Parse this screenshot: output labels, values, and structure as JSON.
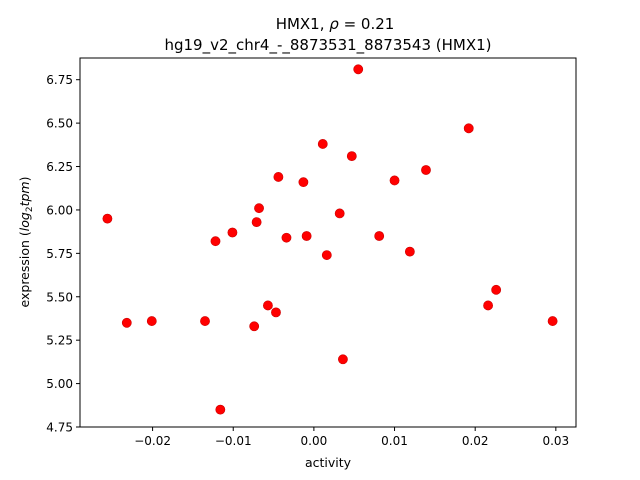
{
  "chart_data": {
    "type": "scatter",
    "title_prefix": "HMX1, ",
    "title_rho_symbol": "ρ",
    "title_rho_value": " = 0.21",
    "subtitle": "hg19_v2_chr4_-_8873531_8873543 (HMX1)",
    "xlabel": "activity",
    "ylabel_prefix": "expression (",
    "ylabel_log": "log",
    "ylabel_sub": "2",
    "ylabel_tpm": "tpm",
    "ylabel_suffix": ")",
    "xlim": [
      -0.029,
      0.0325
    ],
    "ylim": [
      4.75,
      6.875
    ],
    "xticks": [
      -0.02,
      -0.01,
      0.0,
      0.01,
      0.02,
      0.03
    ],
    "xtick_labels": [
      "−0.02",
      "−0.01",
      "0.00",
      "0.01",
      "0.02",
      "0.03"
    ],
    "yticks": [
      4.75,
      5.0,
      5.25,
      5.5,
      5.75,
      6.0,
      6.25,
      6.5,
      6.75
    ],
    "ytick_labels": [
      "4.75",
      "5.00",
      "5.25",
      "5.50",
      "5.75",
      "6.00",
      "6.25",
      "6.50",
      "6.75"
    ],
    "grid": false,
    "marker_color": "#ff0000",
    "marker_edge_color": "#cc0000",
    "points": [
      {
        "x": -0.0256,
        "y": 5.95
      },
      {
        "x": -0.0232,
        "y": 5.35
      },
      {
        "x": -0.0201,
        "y": 5.36
      },
      {
        "x": -0.0135,
        "y": 5.36
      },
      {
        "x": -0.0122,
        "y": 5.82
      },
      {
        "x": -0.0116,
        "y": 4.85
      },
      {
        "x": -0.0101,
        "y": 5.87
      },
      {
        "x": -0.0074,
        "y": 5.33
      },
      {
        "x": -0.0071,
        "y": 5.93
      },
      {
        "x": -0.0068,
        "y": 6.01
      },
      {
        "x": -0.0057,
        "y": 5.45
      },
      {
        "x": -0.0047,
        "y": 5.41
      },
      {
        "x": -0.0044,
        "y": 6.19
      },
      {
        "x": -0.0034,
        "y": 5.84
      },
      {
        "x": -0.0013,
        "y": 6.16
      },
      {
        "x": -0.0009,
        "y": 5.85
      },
      {
        "x": 0.0011,
        "y": 6.38
      },
      {
        "x": 0.0016,
        "y": 5.74
      },
      {
        "x": 0.0032,
        "y": 5.98
      },
      {
        "x": 0.0036,
        "y": 5.14
      },
      {
        "x": 0.0047,
        "y": 6.31
      },
      {
        "x": 0.0055,
        "y": 6.81
      },
      {
        "x": 0.0081,
        "y": 5.85
      },
      {
        "x": 0.01,
        "y": 6.17
      },
      {
        "x": 0.0119,
        "y": 5.76
      },
      {
        "x": 0.0139,
        "y": 6.23
      },
      {
        "x": 0.0192,
        "y": 6.47
      },
      {
        "x": 0.0216,
        "y": 5.45
      },
      {
        "x": 0.0226,
        "y": 5.54
      },
      {
        "x": 0.0296,
        "y": 5.36
      }
    ]
  }
}
